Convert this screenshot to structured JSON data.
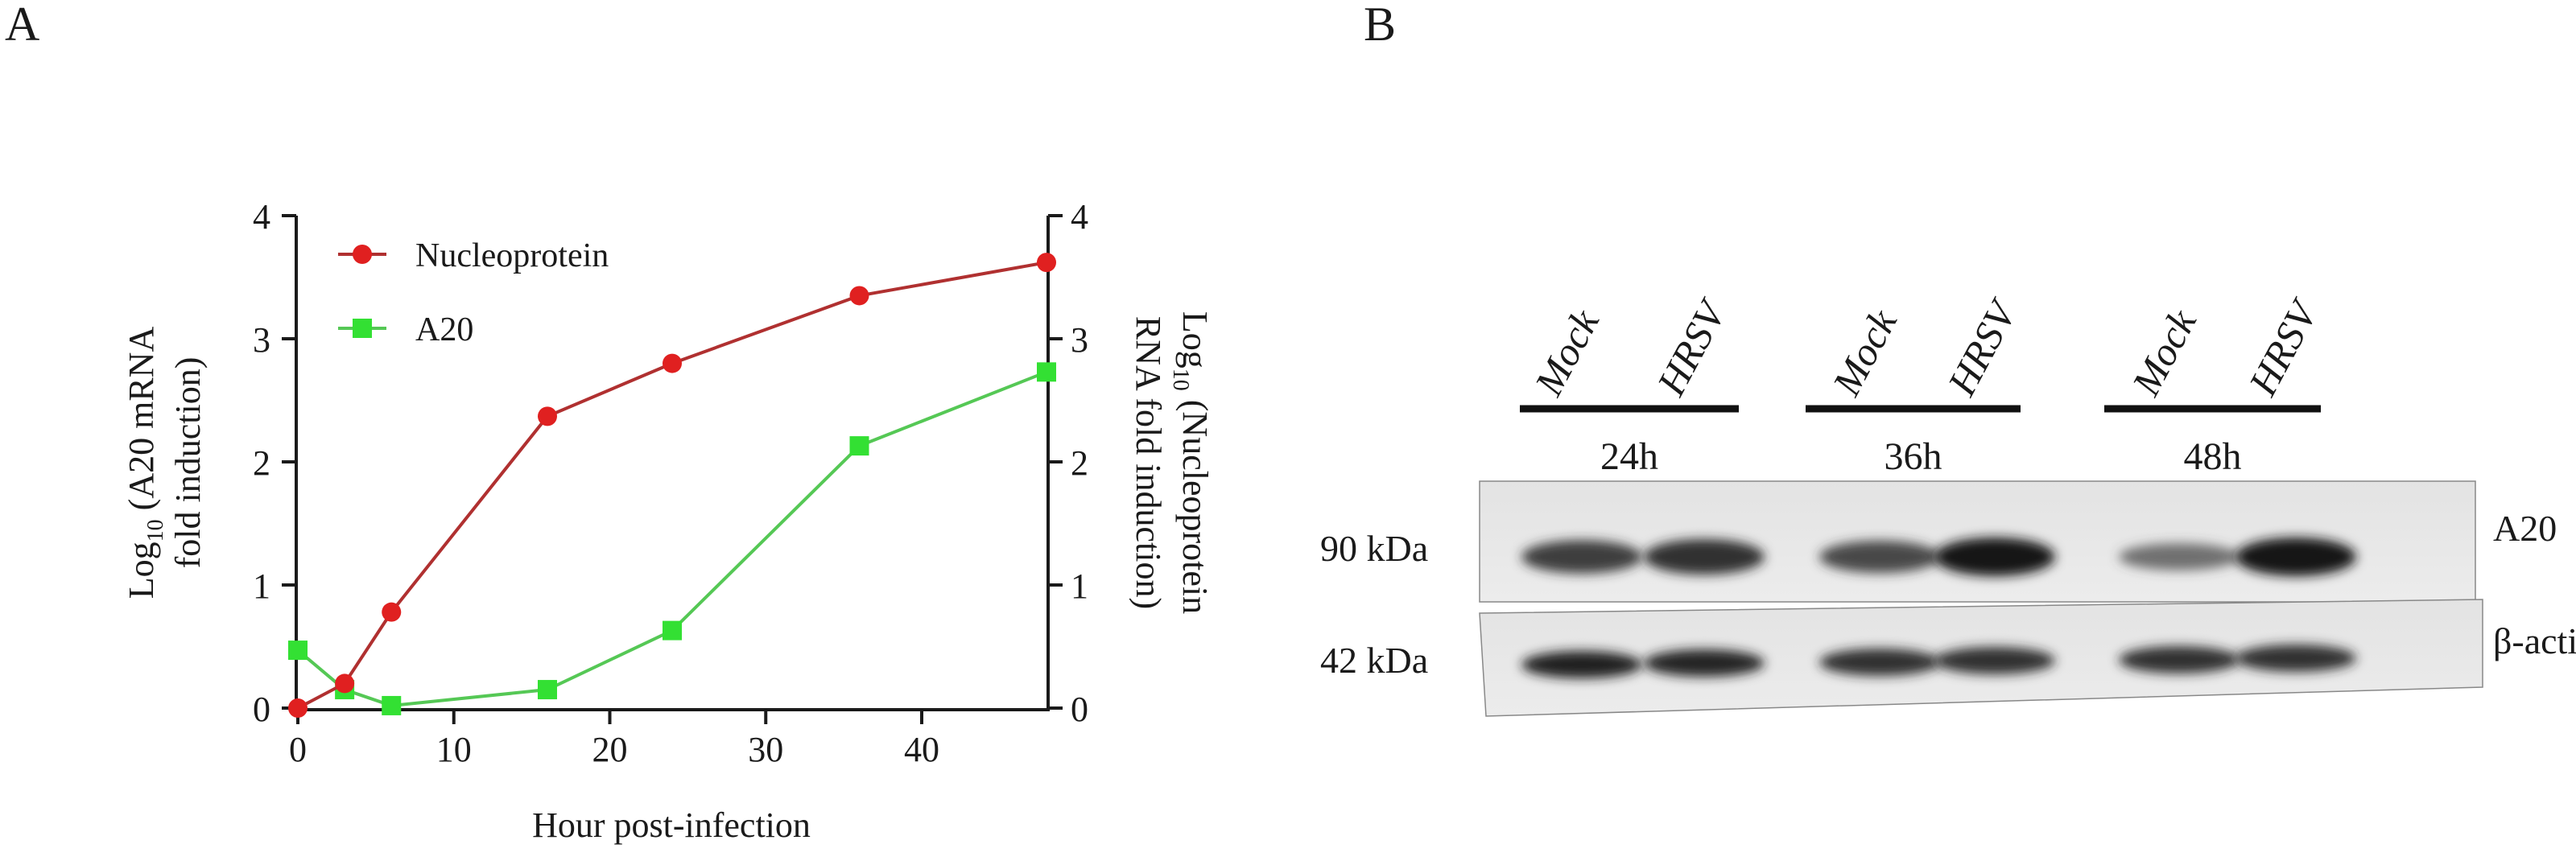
{
  "panels": {
    "a_label": "A",
    "b_label": "B"
  },
  "chart_data": {
    "type": "line",
    "title": "",
    "xlabel": "Hour post-infection",
    "ylabel_left": "Log10 (A20 mRNA fold induction)",
    "ylabel_right": "Log10 (Nucleoprotein RNA fold induction)",
    "xlim": [
      0,
      48
    ],
    "ylim": [
      0,
      4
    ],
    "x_ticks": [
      "0",
      "10",
      "20",
      "30",
      "40"
    ],
    "y_ticks": [
      "0",
      "1",
      "2",
      "3",
      "4"
    ],
    "legend_position": "top-left",
    "series": [
      {
        "name": "Nucleoprotein",
        "color": "#e02020",
        "line_color": "#b03030",
        "marker": "circle",
        "x": [
          0,
          3,
          6,
          16,
          24,
          36,
          48
        ],
        "y": [
          0.0,
          0.2,
          0.78,
          2.37,
          2.8,
          3.35,
          3.62
        ]
      },
      {
        "name": "A20",
        "color": "#33e033",
        "line_color": "#55c855",
        "marker": "square",
        "x": [
          0,
          3,
          6,
          16,
          24,
          36,
          48
        ],
        "y": [
          0.47,
          0.15,
          0.02,
          0.15,
          0.63,
          2.13,
          2.73
        ]
      }
    ]
  },
  "western_blot": {
    "lanes": [
      "Mock",
      "HRSV",
      "Mock",
      "HRSV",
      "Mock",
      "HRSV"
    ],
    "timepoints": [
      "24h",
      "36h",
      "48h"
    ],
    "bands": [
      {
        "protein": "A20",
        "size": "90 kDa",
        "intensity": [
          0.75,
          0.85,
          0.7,
          1.0,
          0.45,
          1.0
        ]
      },
      {
        "protein": "β-actin",
        "size": "42 kDa",
        "intensity": [
          0.95,
          0.9,
          0.85,
          0.85,
          0.85,
          0.85
        ]
      }
    ]
  }
}
